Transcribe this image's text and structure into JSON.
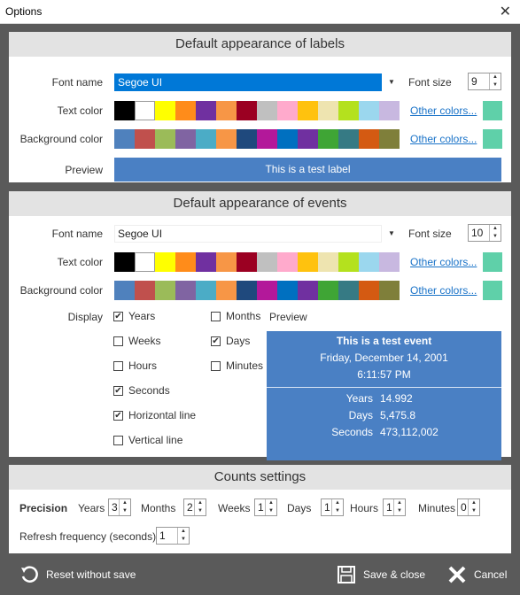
{
  "window": {
    "title": "Options",
    "close_glyph": "✕"
  },
  "labels": {
    "heading": "Default appearance of labels",
    "font_name_label": "Font name",
    "font_name": "Segoe UI",
    "font_size_label": "Font size",
    "font_size": "9",
    "text_color_label": "Text color",
    "bg_color_label": "Background color",
    "other_colors": "Other colors...",
    "preview_label": "Preview",
    "preview_text": "This is a test label",
    "text_palette": [
      "#000000",
      "#ffffff",
      "#ffff00",
      "#ff8c1a",
      "#7030a0",
      "#f79646",
      "#9b0022",
      "#c0c0c0",
      "#ffaacc",
      "#ffc20e",
      "#eee4b0",
      "#b4e11e",
      "#9bd7ee",
      "#c8b8e0"
    ],
    "bg_palette": [
      "#4f81bd",
      "#c0504d",
      "#9bbb59",
      "#8064a2",
      "#4bacc6",
      "#f79646",
      "#1f497d",
      "#b3189a",
      "#0070c0",
      "#7030a0",
      "#3fa535",
      "#367a84",
      "#d45a12",
      "#7f7f3a"
    ],
    "text_selected": "#5fd0a9",
    "bg_selected": "#5fd0a9",
    "preview_color": "#4a80c4"
  },
  "events": {
    "heading": "Default appearance of events",
    "font_name_label": "Font name",
    "font_name": "Segoe UI",
    "font_size_label": "Font size",
    "font_size": "10",
    "text_color_label": "Text color",
    "bg_color_label": "Background color",
    "other_colors": "Other colors...",
    "display_label": "Display",
    "preview_label": "Preview",
    "options": [
      {
        "label": "Years",
        "checked": true
      },
      {
        "label": "Weeks",
        "checked": false
      },
      {
        "label": "Hours",
        "checked": false
      },
      {
        "label": "Seconds",
        "checked": true
      },
      {
        "label": "Horizontal line",
        "checked": true
      },
      {
        "label": "Vertical line",
        "checked": false
      },
      {
        "label": "Months",
        "checked": false
      },
      {
        "label": "Days",
        "checked": true
      },
      {
        "label": "Minutes",
        "checked": false
      }
    ],
    "preview": {
      "title": "This is a test event",
      "date": "Friday, December 14, 2001",
      "time": "6:11:57 PM",
      "rows": [
        {
          "label": "Years",
          "value": "14.992"
        },
        {
          "label": "Days",
          "value": "5,475.8"
        },
        {
          "label": "Seconds",
          "value": "473,112,002"
        }
      ]
    }
  },
  "counts": {
    "heading": "Counts settings",
    "precision_label": "Precision",
    "fields": [
      {
        "label": "Years",
        "value": "3"
      },
      {
        "label": "Months",
        "value": "2"
      },
      {
        "label": "Weeks",
        "value": "1"
      },
      {
        "label": "Days",
        "value": "1"
      },
      {
        "label": "Hours",
        "value": "1"
      },
      {
        "label": "Minutes",
        "value": "0"
      }
    ],
    "refresh_label": "Refresh frequency (seconds)",
    "refresh_value": "1"
  },
  "footer": {
    "reset": "Reset without save",
    "save": "Save & close",
    "cancel": "Cancel"
  }
}
